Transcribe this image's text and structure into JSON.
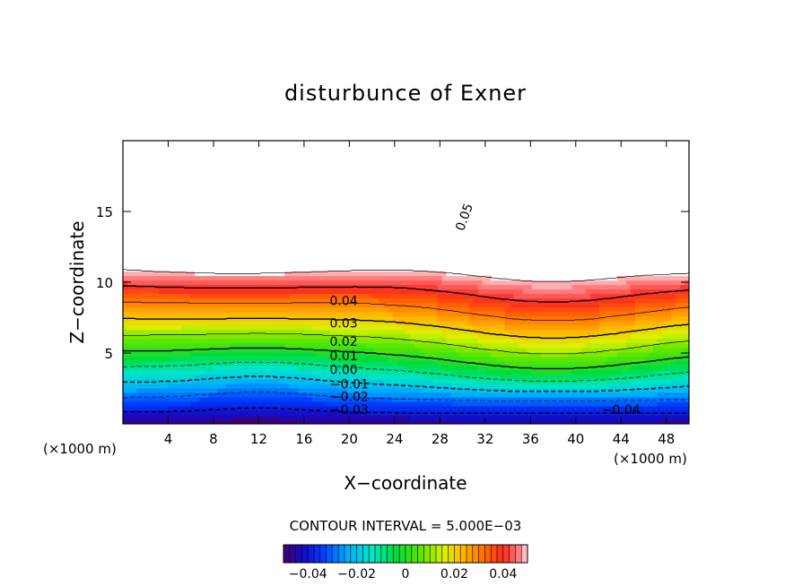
{
  "chart_data": {
    "type": "heatmap",
    "title": "disturbunce of Exner",
    "xlabel": "X−coordinate",
    "ylabel": "Z−coordinate",
    "x_unit": "(×1000 m)",
    "x_unit_right": "(×1000 m)",
    "xlim": [
      0,
      50
    ],
    "ylim": [
      0,
      20
    ],
    "x_ticks": [
      "4",
      "8",
      "12",
      "16",
      "20",
      "24",
      "28",
      "32",
      "36",
      "40",
      "44",
      "48"
    ],
    "y_ticks": [
      "5",
      "10",
      "15"
    ],
    "contour_interval_text": "CONTOUR INTERVAL = 5.000E−03",
    "colorbar": {
      "range": [
        -0.05,
        0.05
      ],
      "ticks": [
        "−0.04",
        "−0.02",
        "0",
        "0.02",
        "0.04"
      ]
    },
    "contour_labels": [
      "0.05",
      "0.04",
      "0.03",
      "0.02",
      "0.01",
      "0.00",
      "−0.01",
      "−0.02",
      "−0.03",
      "−0.04"
    ],
    "contour_levels": [
      -0.04,
      -0.03,
      -0.02,
      -0.01,
      0.0,
      0.01,
      0.02,
      0.03,
      0.04,
      0.05
    ],
    "field_profile": {
      "description_level_heights_km": {
        "x": [
          0,
          10,
          20,
          30,
          38,
          46,
          50
        ],
        "z_of_zero": [
          3.5,
          3.8,
          3.4,
          3.8,
          4.8,
          4.4,
          4.2
        ]
      },
      "max_region": {
        "x": [
          0,
          26
        ],
        "z": [
          10.5,
          20
        ],
        "value": 0.05
      },
      "min_region": {
        "x": [
          30,
          46
        ],
        "z": [
          0,
          1
        ],
        "value": -0.045
      }
    }
  }
}
